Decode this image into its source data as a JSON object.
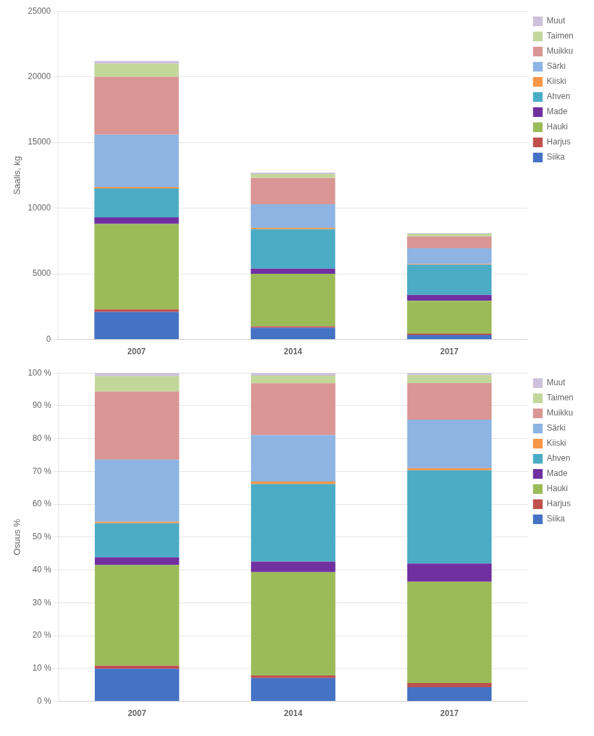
{
  "chart_data": [
    {
      "type": "bar",
      "stacked": true,
      "grid": true,
      "legend": "right",
      "ylabel": "Saalis, kg",
      "categories": [
        "2007",
        "2014",
        "2017"
      ],
      "ylim": [
        0,
        25000
      ],
      "yticks": [
        0,
        5000,
        10000,
        15000,
        20000,
        25000
      ],
      "series": [
        {
          "name": "Siika",
          "color": "#4472C4",
          "values": [
            2100,
            900,
            350
          ]
        },
        {
          "name": "Harjus",
          "color": "#C0504D",
          "values": [
            200,
            100,
            100
          ]
        },
        {
          "name": "Hauki",
          "color": "#9BBB59",
          "values": [
            6500,
            4000,
            2500
          ]
        },
        {
          "name": "Made",
          "color": "#7030A0",
          "values": [
            500,
            400,
            450
          ]
        },
        {
          "name": "Ahven",
          "color": "#4BACC6",
          "values": [
            2200,
            3000,
            2300
          ]
        },
        {
          "name": "Kiiski",
          "color": "#F79646",
          "values": [
            100,
            100,
            50
          ]
        },
        {
          "name": "Särki",
          "color": "#8DB4E2",
          "values": [
            4000,
            1800,
            1200
          ]
        },
        {
          "name": "Muikku",
          "color": "#D99694",
          "values": [
            4400,
            2000,
            900
          ]
        },
        {
          "name": "Taimen",
          "color": "#C4D79B",
          "values": [
            1000,
            300,
            200
          ]
        },
        {
          "name": "Muut",
          "color": "#CCC0DA",
          "values": [
            200,
            100,
            50
          ]
        }
      ]
    },
    {
      "type": "bar",
      "stacked": true,
      "grid": true,
      "legend": "right",
      "ylabel": "Osuus %",
      "categories": [
        "2007",
        "2014",
        "2017"
      ],
      "ylim": [
        0,
        100
      ],
      "yticks": [
        {
          "value": 0,
          "label": "0 %"
        },
        {
          "value": 10,
          "label": "10 %"
        },
        {
          "value": 20,
          "label": "20 %"
        },
        {
          "value": 30,
          "label": "30 %"
        },
        {
          "value": 40,
          "label": "40 %"
        },
        {
          "value": 50,
          "label": "50 %"
        },
        {
          "value": 60,
          "label": "60 %"
        },
        {
          "value": 70,
          "label": "70 %"
        },
        {
          "value": 80,
          "label": "80 %"
        },
        {
          "value": 90,
          "label": "90 %"
        },
        {
          "value": 100,
          "label": "100 %"
        }
      ],
      "series": [
        {
          "name": "Siika",
          "color": "#4472C4",
          "values": [
            9.9056,
            7.0866,
            4.3209
          ]
        },
        {
          "name": "Harjus",
          "color": "#C0504D",
          "values": [
            0.9433,
            0.7874,
            1.2345
          ]
        },
        {
          "name": "Hauki",
          "color": "#9BBB59",
          "values": [
            30.6603,
            31.496,
            30.8641
          ]
        },
        {
          "name": "Made",
          "color": "#7030A0",
          "values": [
            2.3584,
            3.1496,
            5.5555
          ]
        },
        {
          "name": "Ahven",
          "color": "#4BACC6",
          "values": [
            10.3773,
            23.622,
            28.395
          ]
        },
        {
          "name": "Kiiski",
          "color": "#F79646",
          "values": [
            0.4716,
            0.7874,
            0.6172
          ]
        },
        {
          "name": "Särki",
          "color": "#8DB4E2",
          "values": [
            18.8679,
            14.1732,
            14.8148
          ]
        },
        {
          "name": "Muikku",
          "color": "#D99694",
          "values": [
            20.7547,
            15.748,
            11.1111
          ]
        },
        {
          "name": "Taimen",
          "color": "#C4D79B",
          "values": [
            4.7169,
            2.3622,
            2.4691
          ]
        },
        {
          "name": "Muut",
          "color": "#CCC0DA",
          "values": [
            0.9433,
            0.7874,
            0.6172
          ]
        }
      ]
    }
  ]
}
